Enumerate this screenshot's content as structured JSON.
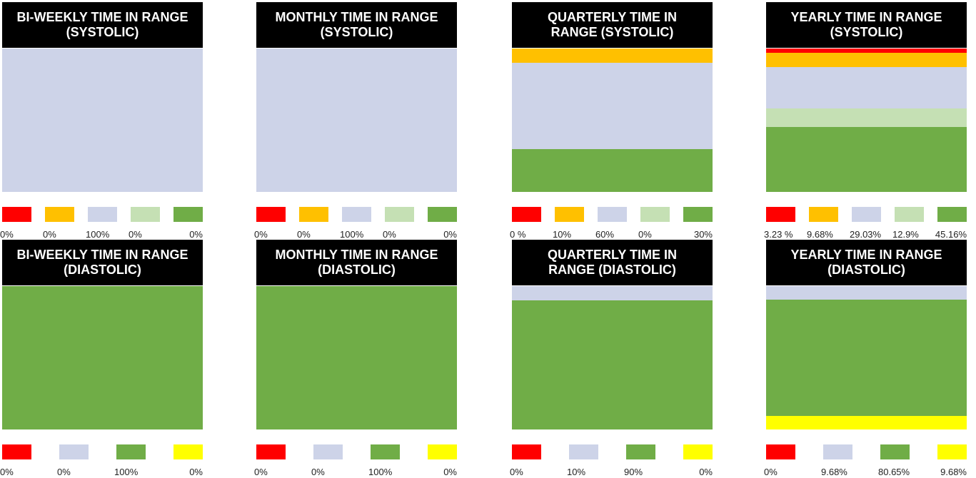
{
  "colors": {
    "red": "#ff0000",
    "orange": "#ffc000",
    "lavender": "#cdd3e8",
    "lightgreen": "#c5e0b4",
    "green": "#70ad47",
    "yellow": "#ffff00"
  },
  "chart_data": [
    {
      "type": "bar",
      "stacked": true,
      "title": "BI-WEEKLY TIME IN RANGE (SYSTOLIC)",
      "categories": [
        "red",
        "orange",
        "lavender",
        "lightgreen",
        "green"
      ],
      "values": [
        0,
        0,
        100,
        0,
        0
      ],
      "labels": [
        "0%",
        "0%",
        "100%",
        "0%",
        "0%"
      ]
    },
    {
      "type": "bar",
      "stacked": true,
      "title": "MONTHLY TIME IN RANGE (SYSTOLIC)",
      "categories": [
        "red",
        "orange",
        "lavender",
        "lightgreen",
        "green"
      ],
      "values": [
        0,
        0,
        100,
        0,
        0
      ],
      "labels": [
        "0%",
        "0%",
        "100%",
        "0%",
        "0%"
      ]
    },
    {
      "type": "bar",
      "stacked": true,
      "title": "QUARTERLY TIME IN RANGE (SYSTOLIC)",
      "categories": [
        "red",
        "orange",
        "lavender",
        "lightgreen",
        "green"
      ],
      "values": [
        0,
        10,
        60,
        0,
        30
      ],
      "labels": [
        "0 %",
        "10%",
        "60%",
        "0%",
        "30%"
      ]
    },
    {
      "type": "bar",
      "stacked": true,
      "title": "YEARLY TIME IN RANGE (SYSTOLIC)",
      "categories": [
        "red",
        "orange",
        "lavender",
        "lightgreen",
        "green"
      ],
      "values": [
        3.23,
        9.68,
        29.03,
        12.9,
        45.16
      ],
      "labels": [
        "3.23 %",
        "9.68%",
        "29.03%",
        "12.9%",
        "45.16%"
      ]
    },
    {
      "type": "bar",
      "stacked": true,
      "title": "BI-WEEKLY TIME IN RANGE (DIASTOLIC)",
      "categories": [
        "red",
        "lavender",
        "green",
        "yellow"
      ],
      "values": [
        0,
        0,
        100,
        0
      ],
      "labels": [
        "0%",
        "0%",
        "100%",
        "0%"
      ]
    },
    {
      "type": "bar",
      "stacked": true,
      "title": "MONTHLY TIME IN RANGE (DIASTOLIC)",
      "categories": [
        "red",
        "lavender",
        "green",
        "yellow"
      ],
      "values": [
        0,
        0,
        100,
        0
      ],
      "labels": [
        "0%",
        "0%",
        "100%",
        "0%"
      ]
    },
    {
      "type": "bar",
      "stacked": true,
      "title": "QUARTERLY TIME IN RANGE (DIASTOLIC)",
      "categories": [
        "red",
        "lavender",
        "green",
        "yellow"
      ],
      "values": [
        0,
        10,
        90,
        0
      ],
      "labels": [
        "0%",
        "10%",
        "90%",
        "0%"
      ]
    },
    {
      "type": "bar",
      "stacked": true,
      "title": "YEARLY TIME IN RANGE (DIASTOLIC)",
      "categories": [
        "red",
        "lavender",
        "green",
        "yellow"
      ],
      "values": [
        0,
        9.68,
        80.65,
        9.68
      ],
      "labels": [
        "0%",
        "9.68%",
        "80.65%",
        "9.68%"
      ]
    }
  ]
}
